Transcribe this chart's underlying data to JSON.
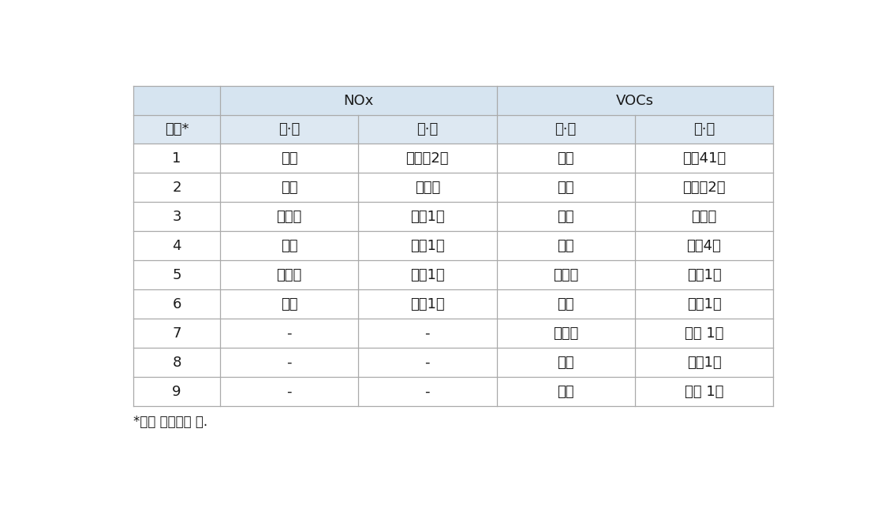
{
  "header_row1_col0": "",
  "header_row1_nox": "NOx",
  "header_row1_vocs": "VOCs",
  "header_row2": [
    "순위*",
    "군·구",
    "읍·동",
    "군·구",
    "읍·동"
  ],
  "data_rows": [
    [
      "1",
      "서구",
      "남부민2동",
      "진구",
      "가앴41동"
    ],
    [
      "2",
      "중구",
      "보수동",
      "서구",
      "남부민2동"
    ],
    [
      "3",
      "영도구",
      "영선1동",
      "중구",
      "보수동"
    ],
    [
      "4",
      "중구",
      "동굉1동",
      "동구",
      "좌천4동"
    ],
    [
      "5",
      "영도구",
      "점래1동",
      "영도구",
      "영선1동"
    ],
    [
      "6",
      "중구",
      "영주1동",
      "중구",
      "동굉1동"
    ],
    [
      "7",
      "-",
      "-",
      "영도구",
      "점래 1동"
    ],
    [
      "8",
      "-",
      "-",
      "중구",
      "영주1동"
    ],
    [
      "9",
      "-",
      "-",
      "진구",
      "부압 1동"
    ]
  ],
  "col_widths_rel": [
    1.0,
    1.6,
    1.6,
    1.6,
    1.6
  ],
  "header1_bg": "#d6e4f0",
  "header2_bg": "#dde8f2",
  "data_bg": "#ffffff",
  "border_color": "#aaaaaa",
  "text_color": "#1a1a1a",
  "footnote": "*높은 인구밀도 순.",
  "figure_bg": "#ffffff"
}
